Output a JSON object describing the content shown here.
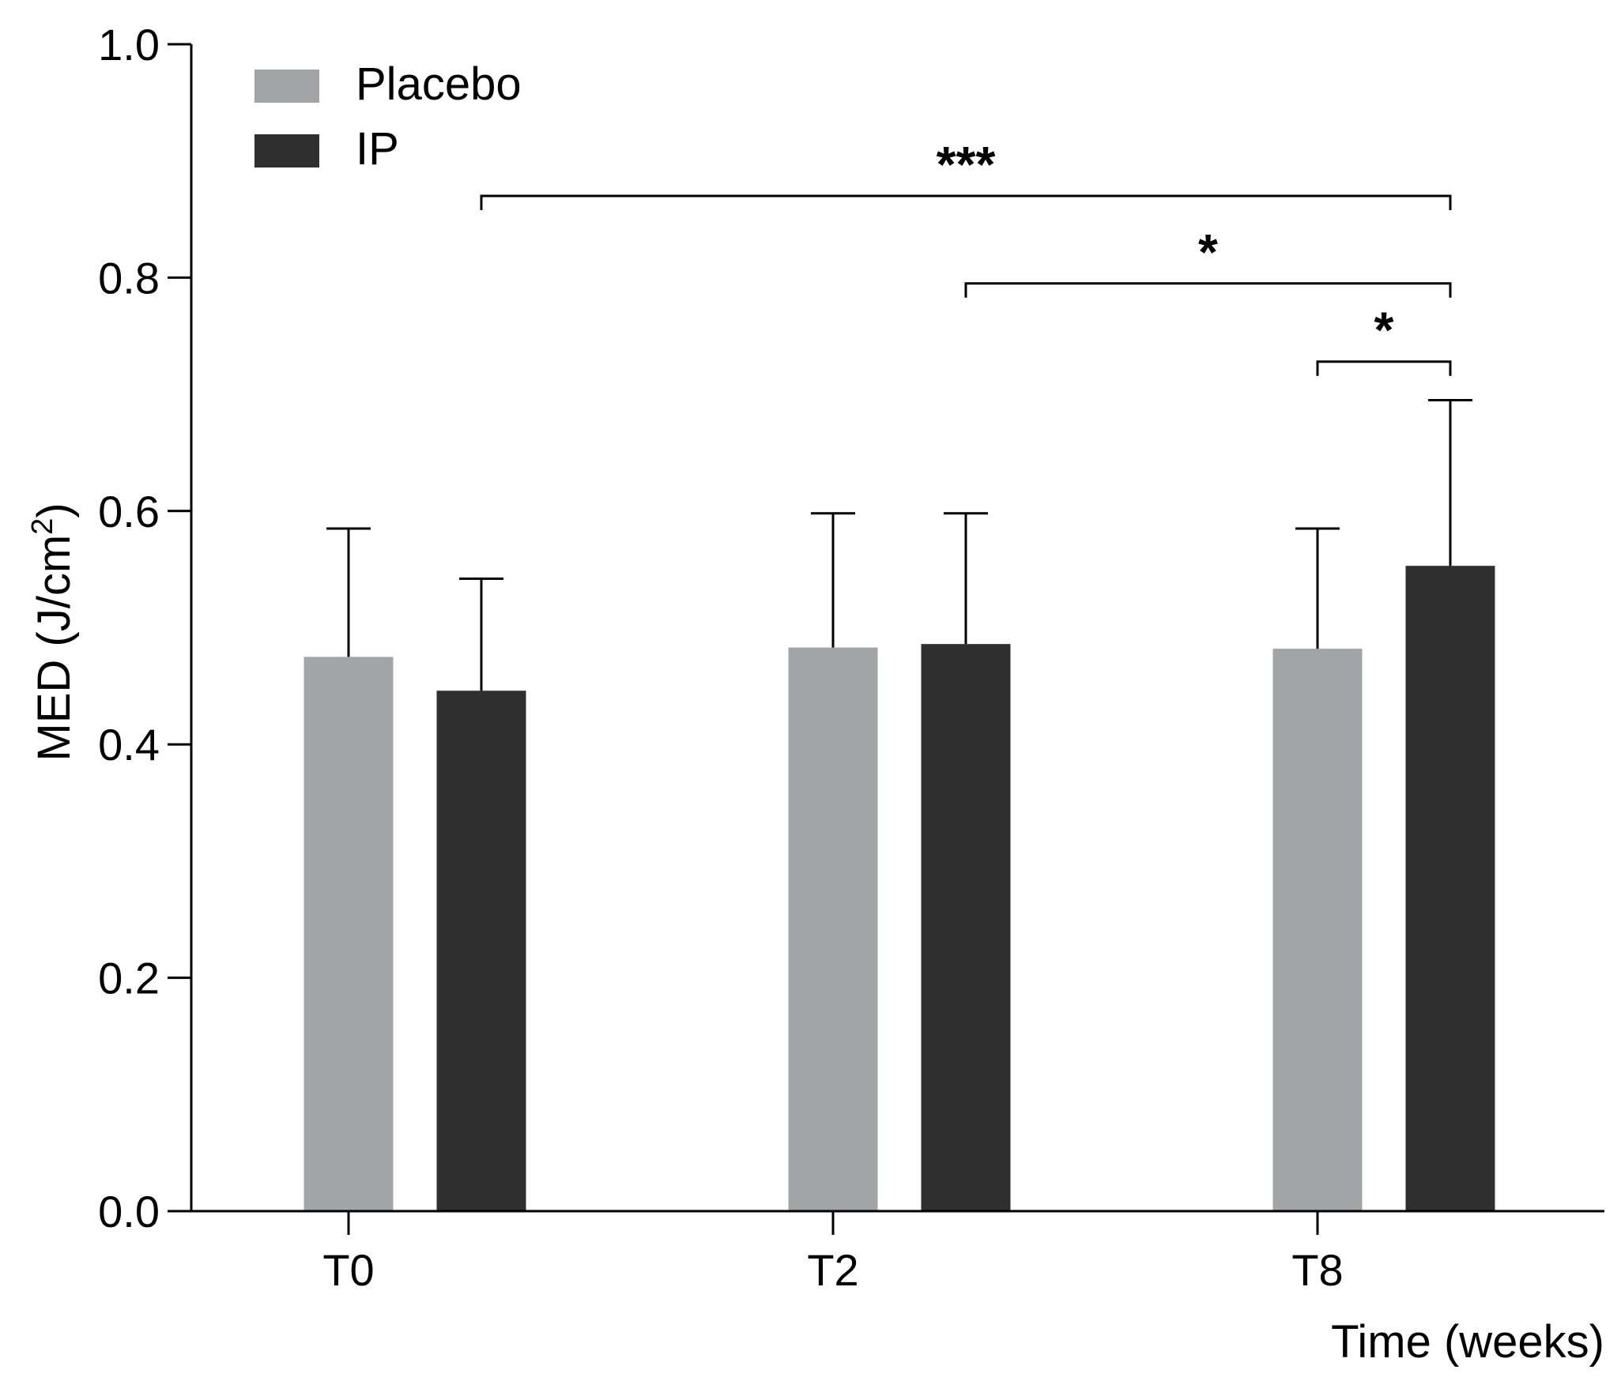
{
  "chart_data": {
    "type": "bar",
    "title": "",
    "xlabel": "Time (weeks)",
    "ylabel_main": "MED (J/cm",
    "ylabel_sup": "2",
    "ylabel_close": ")",
    "ylim": [
      0,
      1.0
    ],
    "yticks": [
      0.0,
      0.2,
      0.4,
      0.6,
      0.8,
      1.0
    ],
    "ytick_labels": [
      "0.0",
      "0.2",
      "0.4",
      "0.6",
      "0.8",
      "1.0"
    ],
    "categories": [
      "T0",
      "T2",
      "T8"
    ],
    "legend_position": "top-left",
    "series": [
      {
        "name": "Placebo",
        "color": "#a3a4a7",
        "values": [
          0.475,
          0.483,
          0.482
        ],
        "error": [
          0.11,
          0.115,
          0.103
        ]
      },
      {
        "name": "IP",
        "color": "#2f2f2f",
        "values": [
          0.446,
          0.486,
          0.553
        ],
        "error": [
          0.096,
          0.112,
          0.142
        ]
      }
    ],
    "significance": [
      {
        "from": {
          "series": 1,
          "category": 0
        },
        "to": {
          "series": 1,
          "category": 2
        },
        "level": 0.87,
        "label": "***"
      },
      {
        "from": {
          "series": 1,
          "category": 1
        },
        "to": {
          "series": 1,
          "category": 2
        },
        "level": 0.795,
        "label": "*"
      },
      {
        "from": {
          "series": 0,
          "category": 2
        },
        "to": {
          "series": 1,
          "category": 2
        },
        "level": 0.728,
        "label": "*"
      }
    ]
  }
}
